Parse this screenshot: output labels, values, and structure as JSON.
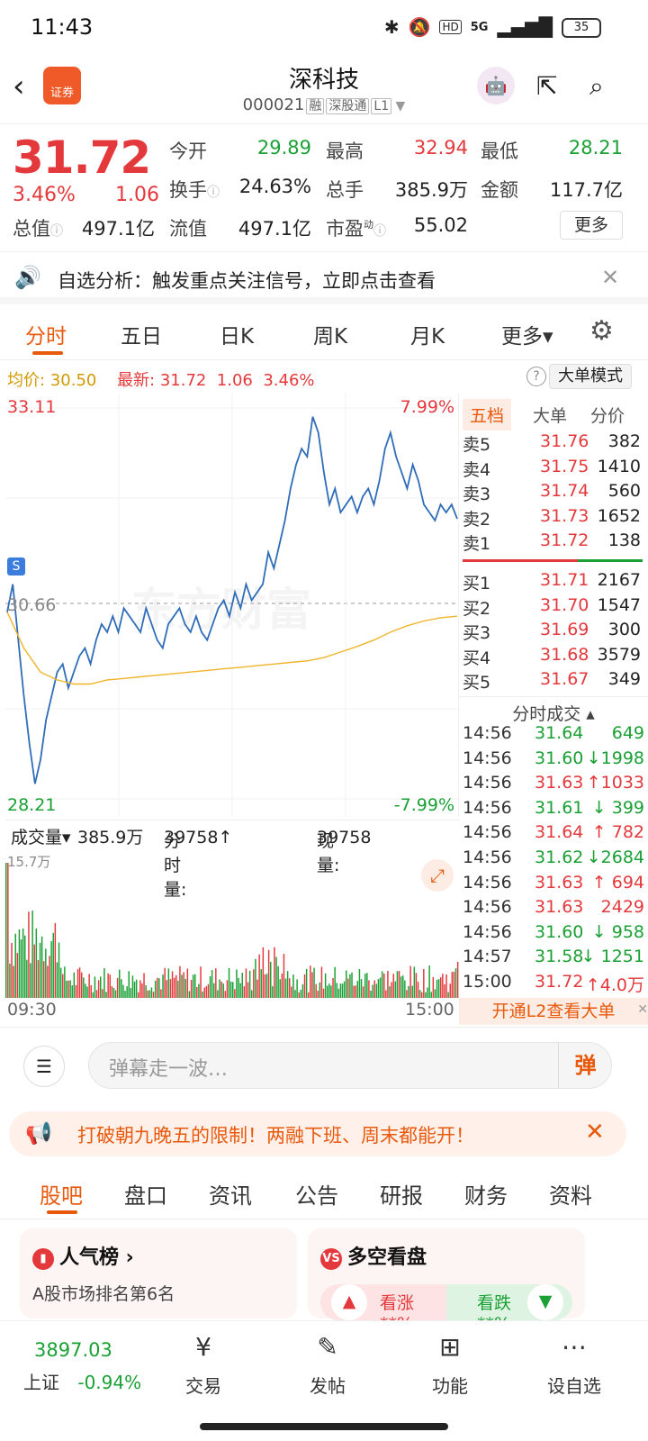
{
  "status": {
    "time": "11:43",
    "icons": [
      "bluetooth-icon",
      "mute-icon",
      "hd-icon",
      "5g-icon",
      "signal-icon"
    ],
    "hd": "HD",
    "net": "5G",
    "battery": "35"
  },
  "header": {
    "back": "back-icon",
    "logo": "证券",
    "title": "深科技",
    "code": "000021",
    "tags": [
      "融",
      "深股通",
      "L1"
    ]
  },
  "quote": {
    "price": "31.72",
    "pct": "3.46%",
    "change": "1.06",
    "row1": [
      {
        "label": "今开",
        "value": "29.89"
      },
      {
        "label": "最高",
        "value": "32.94"
      },
      {
        "label": "最低",
        "value": "28.21"
      }
    ],
    "row2": [
      {
        "label": "换手",
        "value": "24.63%"
      },
      {
        "label": "总手",
        "value": "385.9万"
      },
      {
        "label": "金额",
        "value": "117.7亿"
      }
    ],
    "row3": [
      {
        "label": "总值",
        "value": "497.1亿"
      },
      {
        "label": "流值",
        "value": "497.1亿"
      },
      {
        "label": "市盈",
        "sup": "动",
        "value": "55.02"
      }
    ],
    "more": "更多"
  },
  "notice": {
    "text": "自选分析：触发重点关注信号，立即点击查看"
  },
  "period_tabs": [
    "分时",
    "五日",
    "日K",
    "周K",
    "月K",
    "更多▾"
  ],
  "infoline": {
    "avg_label": "均价:",
    "avg": "30.50",
    "latest_label": "最新:",
    "latest": "31.72",
    "chg": "1.06",
    "pct": "3.46%",
    "help": "?",
    "bigmode": "大单模式"
  },
  "chart_data": {
    "type": "line",
    "ylim": [
      28.21,
      33.11
    ],
    "y_ticks_left": [
      "33.11",
      "30.66",
      "28.21"
    ],
    "y_ticks_right": [
      "7.99%",
      "-7.99%"
    ],
    "x_ticks": [
      "09:30",
      "15:00"
    ],
    "s_badge": "S",
    "watermark": "东方财富",
    "series": [
      {
        "values": [
          30.55,
          30.9,
          30.2,
          29.5,
          28.9,
          28.4,
          28.7,
          29.2,
          29.5,
          29.8,
          29.9,
          29.6,
          29.8,
          30.0,
          30.1,
          29.9,
          30.2,
          30.4,
          30.3,
          30.5,
          30.3,
          30.6,
          30.5,
          30.4,
          30.3,
          30.6,
          30.4,
          30.2,
          30.1,
          30.4,
          30.5,
          30.6,
          30.4,
          30.3,
          30.5,
          30.3,
          30.2,
          30.4,
          30.6,
          30.7,
          30.5,
          30.8,
          30.6,
          30.9,
          30.7,
          30.8,
          30.9,
          31.3,
          31.1,
          31.4,
          31.7,
          32.1,
          32.4,
          32.6,
          32.5,
          33.0,
          32.8,
          32.3,
          31.9,
          32.1,
          31.8,
          31.9,
          32.0,
          31.8,
          32.0,
          32.1,
          31.9,
          32.2,
          32.6,
          32.8,
          32.5,
          32.3,
          32.1,
          32.4,
          32.2,
          31.9,
          31.8,
          31.7,
          31.9,
          31.8,
          31.9,
          31.72
        ],
        "name": ""
      },
      {
        "values": [
          30.55,
          30.1,
          29.8,
          29.7,
          29.65,
          29.65,
          29.7,
          29.72,
          29.74,
          29.76,
          29.78,
          29.8,
          29.82,
          29.84,
          29.86,
          29.88,
          29.9,
          29.92,
          29.94,
          29.98,
          30.05,
          30.12,
          30.2,
          30.3,
          30.38,
          30.44,
          30.48,
          30.5
        ],
        "name": ""
      }
    ],
    "volume": {
      "type": "bar",
      "ymax_label": "15.7万",
      "total": "385.9万"
    }
  },
  "volume_bar": {
    "label": "成交量▾",
    "total": "385.9万",
    "fsl_label": "分时量:",
    "fsl": "39758↑",
    "now_label": "现量:",
    "now": "39758"
  },
  "book": {
    "tabs": [
      "五档",
      "大单",
      "分价"
    ],
    "sell": [
      [
        "卖5",
        "31.76",
        "382"
      ],
      [
        "卖4",
        "31.75",
        "1410"
      ],
      [
        "卖3",
        "31.74",
        "560"
      ],
      [
        "卖2",
        "31.73",
        "1652"
      ],
      [
        "卖1",
        "31.72",
        "138"
      ]
    ],
    "buy": [
      [
        "买1",
        "31.71",
        "2167"
      ],
      [
        "买2",
        "31.70",
        "1547"
      ],
      [
        "买3",
        "31.69",
        "300"
      ],
      [
        "买4",
        "31.68",
        "3579"
      ],
      [
        "买5",
        "31.67",
        "349"
      ]
    ],
    "ticks_title": "分时成交 ▴",
    "ticks": [
      [
        "14:56",
        "31.64",
        "649",
        "g"
      ],
      [
        "14:56",
        "31.60",
        "↓1998",
        "g"
      ],
      [
        "14:56",
        "31.63",
        "↑1033",
        "r"
      ],
      [
        "14:56",
        "31.61",
        "↓ 399",
        "g"
      ],
      [
        "14:56",
        "31.64",
        "↑ 782",
        "r"
      ],
      [
        "14:56",
        "31.62",
        "↓2684",
        "g"
      ],
      [
        "14:56",
        "31.63",
        "↑ 694",
        "r"
      ],
      [
        "14:56",
        "31.63",
        "2429",
        "r"
      ],
      [
        "14:56",
        "31.60",
        "↓ 958",
        "g"
      ],
      [
        "14:57",
        "31.58",
        "↓ 1251",
        "g"
      ],
      [
        "15:00",
        "31.72",
        "↑4.0万",
        "r"
      ]
    ],
    "l2": "开通L2查看大单"
  },
  "comment": {
    "placeholder": "弹幕走一波…",
    "dan": "弹"
  },
  "promo": {
    "text": "打破朝九晚五的限制！两融下班、周末都能开！"
  },
  "section_tabs": [
    "股吧",
    "盘口",
    "资讯",
    "公告",
    "研报",
    "财务",
    "资料"
  ],
  "cards": {
    "left": {
      "title": "人气榜 ›",
      "sub": "A股市场排名第6名"
    },
    "right": {
      "title": "多空看盘",
      "up": "看涨",
      "down": "看跌",
      "up_val": "**%",
      "down_val": "**%"
    }
  },
  "nav": {
    "index_value": "3897.03",
    "index_name": "上证",
    "index_pct": "-0.94%",
    "items": [
      "交易",
      "发帖",
      "功能",
      "设自选"
    ]
  }
}
